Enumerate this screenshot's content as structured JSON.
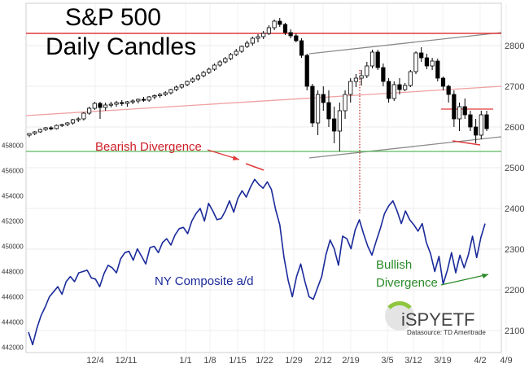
{
  "chart_data": [
    {
      "type": "candlestick",
      "title": "S&P 500",
      "subtitle": "Daily Candles",
      "ylim": [
        2100,
        2900
      ],
      "right_ticks": [
        "2800",
        "2700",
        "2600",
        "2500",
        "2400",
        "2300",
        "2200",
        "2100"
      ],
      "x_ticks": [
        "12/4",
        "12/11",
        "1/1",
        "1/8",
        "1/15",
        "1/22",
        "1/29",
        "2/12",
        "2/19",
        "3/5",
        "3/12",
        "3/19",
        "4/2",
        "4/9"
      ],
      "candles": [
        [
          2580,
          2585,
          2575,
          2584
        ],
        [
          2584,
          2590,
          2580,
          2588
        ],
        [
          2588,
          2596,
          2586,
          2594
        ],
        [
          2594,
          2600,
          2590,
          2598
        ],
        [
          2598,
          2602,
          2592,
          2596
        ],
        [
          2596,
          2606,
          2594,
          2604
        ],
        [
          2604,
          2608,
          2600,
          2606
        ],
        [
          2606,
          2612,
          2602,
          2610
        ],
        [
          2610,
          2620,
          2606,
          2618
        ],
        [
          2618,
          2624,
          2612,
          2620
        ],
        [
          2620,
          2636,
          2616,
          2634
        ],
        [
          2634,
          2650,
          2630,
          2646
        ],
        [
          2646,
          2662,
          2642,
          2658
        ],
        [
          2658,
          2662,
          2620,
          2648
        ],
        [
          2648,
          2660,
          2640,
          2654
        ],
        [
          2654,
          2662,
          2648,
          2656
        ],
        [
          2656,
          2664,
          2650,
          2660
        ],
        [
          2660,
          2666,
          2652,
          2658
        ],
        [
          2658,
          2664,
          2650,
          2662
        ],
        [
          2662,
          2668,
          2656,
          2664
        ],
        [
          2664,
          2670,
          2658,
          2668
        ],
        [
          2668,
          2674,
          2662,
          2666
        ],
        [
          2666,
          2676,
          2662,
          2674
        ],
        [
          2674,
          2680,
          2668,
          2677
        ],
        [
          2677,
          2684,
          2672,
          2680
        ],
        [
          2680,
          2688,
          2676,
          2684
        ],
        [
          2684,
          2694,
          2680,
          2692
        ],
        [
          2692,
          2702,
          2688,
          2698
        ],
        [
          2698,
          2706,
          2694,
          2704
        ],
        [
          2704,
          2714,
          2700,
          2712
        ],
        [
          2712,
          2722,
          2708,
          2718
        ],
        [
          2718,
          2730,
          2714,
          2726
        ],
        [
          2726,
          2738,
          2722,
          2734
        ],
        [
          2734,
          2746,
          2730,
          2742
        ],
        [
          2742,
          2756,
          2738,
          2752
        ],
        [
          2752,
          2764,
          2748,
          2760
        ],
        [
          2760,
          2772,
          2756,
          2768
        ],
        [
          2768,
          2782,
          2764,
          2778
        ],
        [
          2778,
          2792,
          2774,
          2786
        ],
        [
          2786,
          2800,
          2782,
          2798
        ],
        [
          2798,
          2812,
          2794,
          2806
        ],
        [
          2806,
          2822,
          2800,
          2818
        ],
        [
          2818,
          2828,
          2808,
          2822
        ],
        [
          2822,
          2836,
          2816,
          2830
        ],
        [
          2830,
          2850,
          2826,
          2844
        ],
        [
          2844,
          2864,
          2838,
          2860
        ],
        [
          2860,
          2868,
          2846,
          2852
        ],
        [
          2852,
          2856,
          2826,
          2832
        ],
        [
          2832,
          2840,
          2818,
          2824
        ],
        [
          2824,
          2830,
          2808,
          2812
        ],
        [
          2812,
          2818,
          2770,
          2776
        ],
        [
          2776,
          2780,
          2690,
          2700
        ],
        [
          2700,
          2706,
          2600,
          2610
        ],
        [
          2610,
          2690,
          2580,
          2680
        ],
        [
          2680,
          2700,
          2640,
          2660
        ],
        [
          2660,
          2690,
          2600,
          2620
        ],
        [
          2620,
          2650,
          2560,
          2590
        ],
        [
          2590,
          2660,
          2540,
          2640
        ],
        [
          2640,
          2690,
          2620,
          2680
        ],
        [
          2680,
          2720,
          2660,
          2712
        ],
        [
          2712,
          2730,
          2698,
          2720
        ],
        [
          2720,
          2740,
          2702,
          2726
        ],
        [
          2726,
          2760,
          2720,
          2750
        ],
        [
          2750,
          2790,
          2744,
          2784
        ],
        [
          2784,
          2790,
          2740,
          2746
        ],
        [
          2746,
          2756,
          2700,
          2712
        ],
        [
          2712,
          2720,
          2660,
          2670
        ],
        [
          2670,
          2712,
          2664,
          2704
        ],
        [
          2704,
          2720,
          2680,
          2692
        ],
        [
          2692,
          2708,
          2688,
          2702
        ],
        [
          2702,
          2740,
          2698,
          2736
        ],
        [
          2736,
          2786,
          2730,
          2782
        ],
        [
          2782,
          2796,
          2760,
          2770
        ],
        [
          2770,
          2780,
          2742,
          2750
        ],
        [
          2750,
          2770,
          2740,
          2762
        ],
        [
          2762,
          2768,
          2712,
          2720
        ],
        [
          2720,
          2724,
          2690,
          2700
        ],
        [
          2700,
          2704,
          2660,
          2680
        ],
        [
          2680,
          2690,
          2600,
          2620
        ],
        [
          2620,
          2660,
          2590,
          2650
        ],
        [
          2650,
          2670,
          2620,
          2630
        ],
        [
          2630,
          2640,
          2590,
          2600
        ],
        [
          2600,
          2620,
          2560,
          2580
        ],
        [
          2580,
          2640,
          2570,
          2630
        ],
        [
          2630,
          2640,
          2590,
          2596
        ]
      ],
      "reference_lines": [
        2830,
        2540
      ],
      "annotations": [
        "Bearish Divergence"
      ]
    },
    {
      "type": "line",
      "name": "NY Composite a/d",
      "ylim": [
        442000,
        459500
      ],
      "left_ticks": [
        "458000",
        "456000",
        "454000",
        "452000",
        "450000",
        "448000",
        "446000",
        "444000",
        "442000"
      ],
      "values": [
        443200,
        442200,
        443500,
        444500,
        445200,
        446000,
        446400,
        446800,
        446200,
        447200,
        447600,
        447200,
        447900,
        448000,
        448100,
        447500,
        447400,
        446800,
        447800,
        448500,
        448300,
        447900,
        449000,
        449500,
        449600,
        448900,
        449800,
        449200,
        448600,
        449900,
        450000,
        449500,
        450300,
        450600,
        450100,
        450900,
        451400,
        451500,
        451000,
        452000,
        452600,
        453000,
        452000,
        453400,
        452800,
        452100,
        452200,
        452800,
        453600,
        452700,
        453800,
        454400,
        453900,
        454700,
        455300,
        454900,
        454600,
        455100,
        454500,
        452900,
        451700,
        449100,
        447300,
        446000,
        447600,
        448600,
        447200,
        446000,
        445800,
        446700,
        447600,
        449300,
        450500,
        449800,
        448500,
        450800,
        450600,
        449800,
        451300,
        452100,
        451000,
        450000,
        449300,
        450400,
        451400,
        452600,
        453200,
        453600,
        452800,
        451800,
        452800,
        452100,
        451700,
        451200,
        451800,
        450300,
        449400,
        448000,
        449200,
        447000,
        448100,
        449500,
        447900,
        449300,
        448300,
        449300,
        450800,
        449100,
        450700,
        451800
      ],
      "annotations": [
        "Bullish Divergence"
      ]
    }
  ],
  "brand": {
    "logo_text": "iSPYETF",
    "source": "Datasource: TD Ameritrade"
  }
}
